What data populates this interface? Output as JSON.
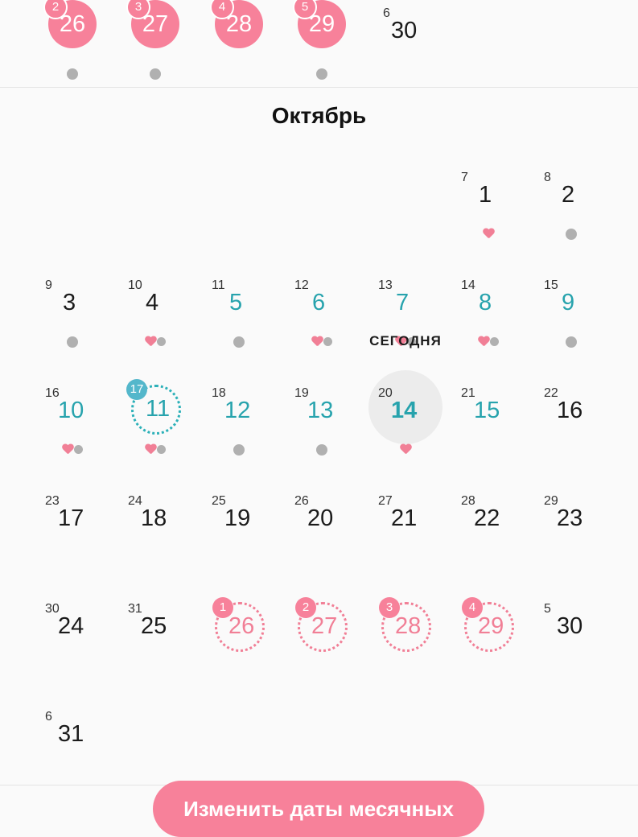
{
  "prev_month": {
    "days": [
      {
        "num": "26",
        "cycle": "2",
        "style": "period"
      },
      {
        "num": "27",
        "cycle": "3",
        "style": "period"
      },
      {
        "num": "28",
        "cycle": "4",
        "style": "period"
      },
      {
        "num": "29",
        "cycle": "5",
        "style": "period"
      },
      {
        "num": "30",
        "cycle": "6",
        "style": "plain"
      }
    ]
  },
  "calendar": {
    "month_title": "Октябрь",
    "today_label": "СЕГОДНЯ",
    "days": [
      {
        "num": "1",
        "cycle": "7",
        "color": "black",
        "ind": "heart"
      },
      {
        "num": "2",
        "cycle": "8",
        "color": "black",
        "ind": "dot"
      },
      {
        "num": "3",
        "cycle": "9",
        "color": "black",
        "ind": "dot"
      },
      {
        "num": "4",
        "cycle": "10",
        "color": "black",
        "ind": "heart-dot"
      },
      {
        "num": "5",
        "cycle": "11",
        "color": "teal",
        "ind": "dot"
      },
      {
        "num": "6",
        "cycle": "12",
        "color": "teal",
        "ind": "heart-dot"
      },
      {
        "num": "7",
        "cycle": "13",
        "color": "teal",
        "ind": "heart-dot"
      },
      {
        "num": "8",
        "cycle": "14",
        "color": "teal",
        "ind": "heart-dot"
      },
      {
        "num": "9",
        "cycle": "15",
        "color": "teal",
        "ind": "dot"
      },
      {
        "num": "10",
        "cycle": "16",
        "color": "teal",
        "ind": "heart-dot"
      },
      {
        "num": "11",
        "cycle": "17",
        "color": "teal",
        "ind": "heart-dot",
        "special": "ovulation"
      },
      {
        "num": "12",
        "cycle": "18",
        "color": "teal",
        "ind": "dot"
      },
      {
        "num": "13",
        "cycle": "19",
        "color": "teal",
        "ind": "dot"
      },
      {
        "num": "14",
        "cycle": "20",
        "color": "teal",
        "ind": "heart",
        "special": "today"
      },
      {
        "num": "15",
        "cycle": "21",
        "color": "teal",
        "ind": ""
      },
      {
        "num": "16",
        "cycle": "22",
        "color": "black",
        "ind": ""
      },
      {
        "num": "17",
        "cycle": "23",
        "color": "black",
        "ind": ""
      },
      {
        "num": "18",
        "cycle": "24",
        "color": "black",
        "ind": ""
      },
      {
        "num": "19",
        "cycle": "25",
        "color": "black",
        "ind": ""
      },
      {
        "num": "20",
        "cycle": "26",
        "color": "black",
        "ind": ""
      },
      {
        "num": "21",
        "cycle": "27",
        "color": "black",
        "ind": ""
      },
      {
        "num": "22",
        "cycle": "28",
        "color": "black",
        "ind": ""
      },
      {
        "num": "23",
        "cycle": "29",
        "color": "black",
        "ind": ""
      },
      {
        "num": "24",
        "cycle": "30",
        "color": "black",
        "ind": ""
      },
      {
        "num": "25",
        "cycle": "31",
        "color": "black",
        "ind": ""
      },
      {
        "num": "26",
        "cycle": "1",
        "color": "pink",
        "ind": "",
        "special": "predicted"
      },
      {
        "num": "27",
        "cycle": "2",
        "color": "pink",
        "ind": "",
        "special": "predicted"
      },
      {
        "num": "28",
        "cycle": "3",
        "color": "pink",
        "ind": "",
        "special": "predicted"
      },
      {
        "num": "29",
        "cycle": "4",
        "color": "pink",
        "ind": "",
        "special": "predicted"
      },
      {
        "num": "30",
        "cycle": "5",
        "color": "black",
        "ind": ""
      },
      {
        "num": "31",
        "cycle": "6",
        "color": "black",
        "ind": ""
      }
    ]
  },
  "edit_button": {
    "label": "Изменить даты месячных"
  },
  "colors": {
    "period_pink": "#f7819a",
    "teal": "#27a3ad",
    "ovulation_blue": "#54b7cb",
    "gray_dot": "#b0b0b0"
  }
}
